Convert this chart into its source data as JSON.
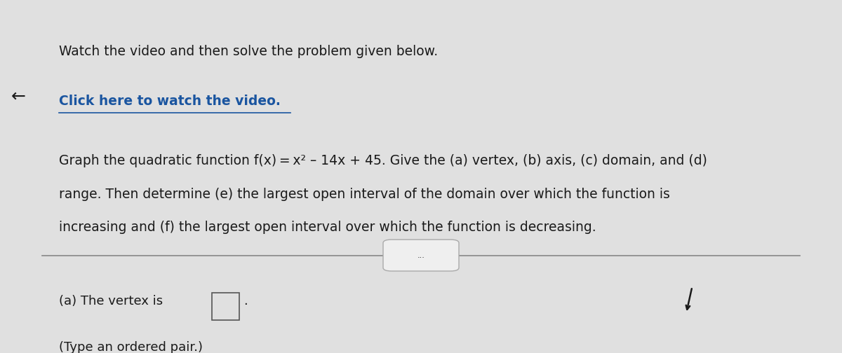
{
  "background_color": "#c8c8c8",
  "header_color": "#4a8fa8",
  "back_arrow": "←",
  "line1": "Watch the video and then solve the problem given below.",
  "link_text": "Click here to watch the video.",
  "link_color": "#1a55a0",
  "body_line1": "Graph the quadratic function f(x) = x² – 14x + 45. Give the (a) vertex, (b) axis, (c) domain, and (d)",
  "body_line2": "range. Then determine (e) the largest open interval of the domain over which the function is",
  "body_line3": "increasing and (f) the largest open interval over which the function is decreasing.",
  "divider_dots": "...",
  "answer_line1": "(a) The vertex is",
  "answer_line2": "(Type an ordered pair.)",
  "text_color": "#1a1a1a",
  "panel_bg": "#e0e0e0",
  "font_size_body": 13.5,
  "font_size_link": 13.5,
  "font_size_title": 13.5,
  "font_size_answer": 13.0
}
